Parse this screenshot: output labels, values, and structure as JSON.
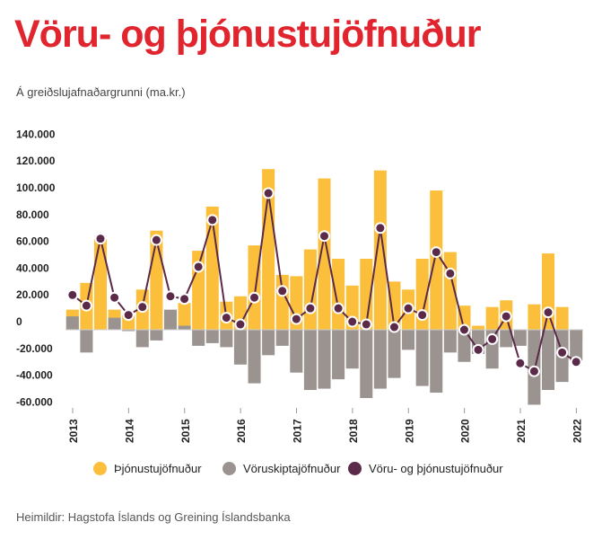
{
  "title": "Vöru- og þjónustujöfnuður",
  "subtitle": "Á greiðslujafnaðargrunni (ma.kr.)",
  "source": "Heimildir: Hagstofa Íslands og Greining Íslandsbanka",
  "colors": {
    "services": "#fbbf3c",
    "goods": "#9b9390",
    "total": "#5a2a48",
    "title": "#e0252f"
  },
  "chart_data": {
    "type": "bar",
    "y_ticks": [
      "140.000",
      "120.000",
      "100.000",
      "80.000",
      "60.000",
      "40.000",
      "20.000",
      "0",
      "-20.000",
      "-40.000",
      "-60.000"
    ],
    "ylim": [
      -60000,
      140000
    ],
    "year_labels": [
      "2013",
      "2014",
      "2015",
      "2016",
      "2017",
      "2018",
      "2019",
      "2020",
      "2021",
      "2022"
    ],
    "categories": [
      "2013-Q1",
      "2013-Q2",
      "2013-Q3",
      "2013-Q4",
      "2014-Q1",
      "2014-Q2",
      "2014-Q3",
      "2014-Q4",
      "2015-Q1",
      "2015-Q2",
      "2015-Q3",
      "2015-Q4",
      "2016-Q1",
      "2016-Q2",
      "2016-Q3",
      "2016-Q4",
      "2017-Q1",
      "2017-Q2",
      "2017-Q3",
      "2017-Q4",
      "2018-Q1",
      "2018-Q2",
      "2018-Q3",
      "2018-Q4",
      "2019-Q1",
      "2019-Q2",
      "2019-Q3",
      "2019-Q4",
      "2020-Q1",
      "2020-Q2",
      "2020-Q3",
      "2020-Q4",
      "2021-Q1",
      "2021-Q2",
      "2021-Q3",
      "2021-Q4",
      "2022-Q1"
    ],
    "series": [
      {
        "name": "Þjónustujöfnuður",
        "type": "bar",
        "values": [
          15000,
          35000,
          68000,
          15000,
          11000,
          30000,
          74000,
          10000,
          20000,
          59000,
          92000,
          21000,
          25000,
          63000,
          120000,
          41000,
          40000,
          60000,
          113000,
          53000,
          33000,
          53000,
          119000,
          36000,
          30000,
          53000,
          104000,
          58000,
          18000,
          3000,
          17000,
          22000,
          0,
          19000,
          57000,
          17000,
          -8000
        ]
      },
      {
        "name": "Vöruskiptajöfnuður",
        "type": "bar",
        "values": [
          10000,
          -17000,
          0,
          9000,
          -1000,
          -13000,
          -8000,
          15000,
          3000,
          -12000,
          -10000,
          -13000,
          -26000,
          -40000,
          -19000,
          -12000,
          -32000,
          -45000,
          -44000,
          -37000,
          -29000,
          -51000,
          -44000,
          -36000,
          -15000,
          -42000,
          -47000,
          -17000,
          -24000,
          -18000,
          -29000,
          -13000,
          -12000,
          -56000,
          -45000,
          -39000,
          -23000
        ]
      },
      {
        "name": "Vöru- og þjónustujöfnuður",
        "type": "line",
        "values": [
          26000,
          18000,
          68000,
          24000,
          11000,
          17000,
          67000,
          25000,
          23000,
          47000,
          82000,
          9000,
          4000,
          24000,
          102000,
          29000,
          8000,
          16000,
          70000,
          16000,
          6000,
          4000,
          76000,
          2000,
          16000,
          11000,
          58000,
          42000,
          0,
          -15000,
          -7000,
          10000,
          -25000,
          -31000,
          13000,
          -17000,
          -24000
        ]
      }
    ]
  }
}
